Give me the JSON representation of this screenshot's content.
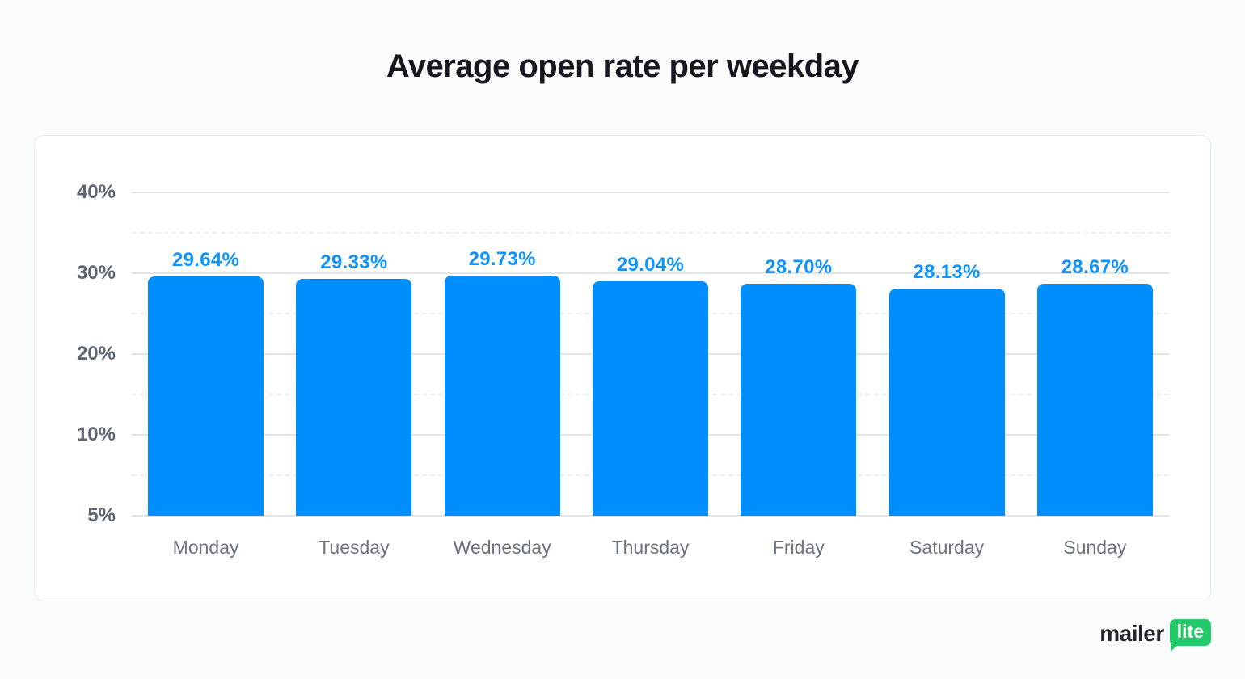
{
  "page": {
    "title": "Average open rate per weekday"
  },
  "logo": {
    "brand": "mailer",
    "badge": "lite",
    "badge_color": "#24c96a",
    "brand_color": "#23262c"
  },
  "colors": {
    "bar": "#008efc",
    "value_label": "#0e94fc",
    "grid_major": "#e3e4e9",
    "grid_minor": "#ededf1",
    "axis_text": "#5c6670",
    "category_text": "#6b7480",
    "card_background": "#ffffff",
    "page_background": "#fafbfb"
  },
  "chart_data": {
    "type": "bar",
    "title": "Average open rate per weekday",
    "categories": [
      "Monday",
      "Tuesday",
      "Wednesday",
      "Thursday",
      "Friday",
      "Saturday",
      "Sunday"
    ],
    "values": [
      29.64,
      29.33,
      29.73,
      29.04,
      28.7,
      28.13,
      28.67
    ],
    "value_labels": [
      "29.64%",
      "29.33%",
      "29.73%",
      "29.04%",
      "28.70%",
      "28.13%",
      "28.67%"
    ],
    "y_ticks": [
      {
        "label": "40%",
        "value": 40
      },
      {
        "label": "30%",
        "value": 30
      },
      {
        "label": "20%",
        "value": 20
      },
      {
        "label": "10%",
        "value": 10
      },
      {
        "label": "5%",
        "value": 5
      }
    ],
    "ylim": [
      5,
      40
    ],
    "grid": true,
    "legend_position": "none",
    "xlabel": "",
    "ylabel": ""
  }
}
